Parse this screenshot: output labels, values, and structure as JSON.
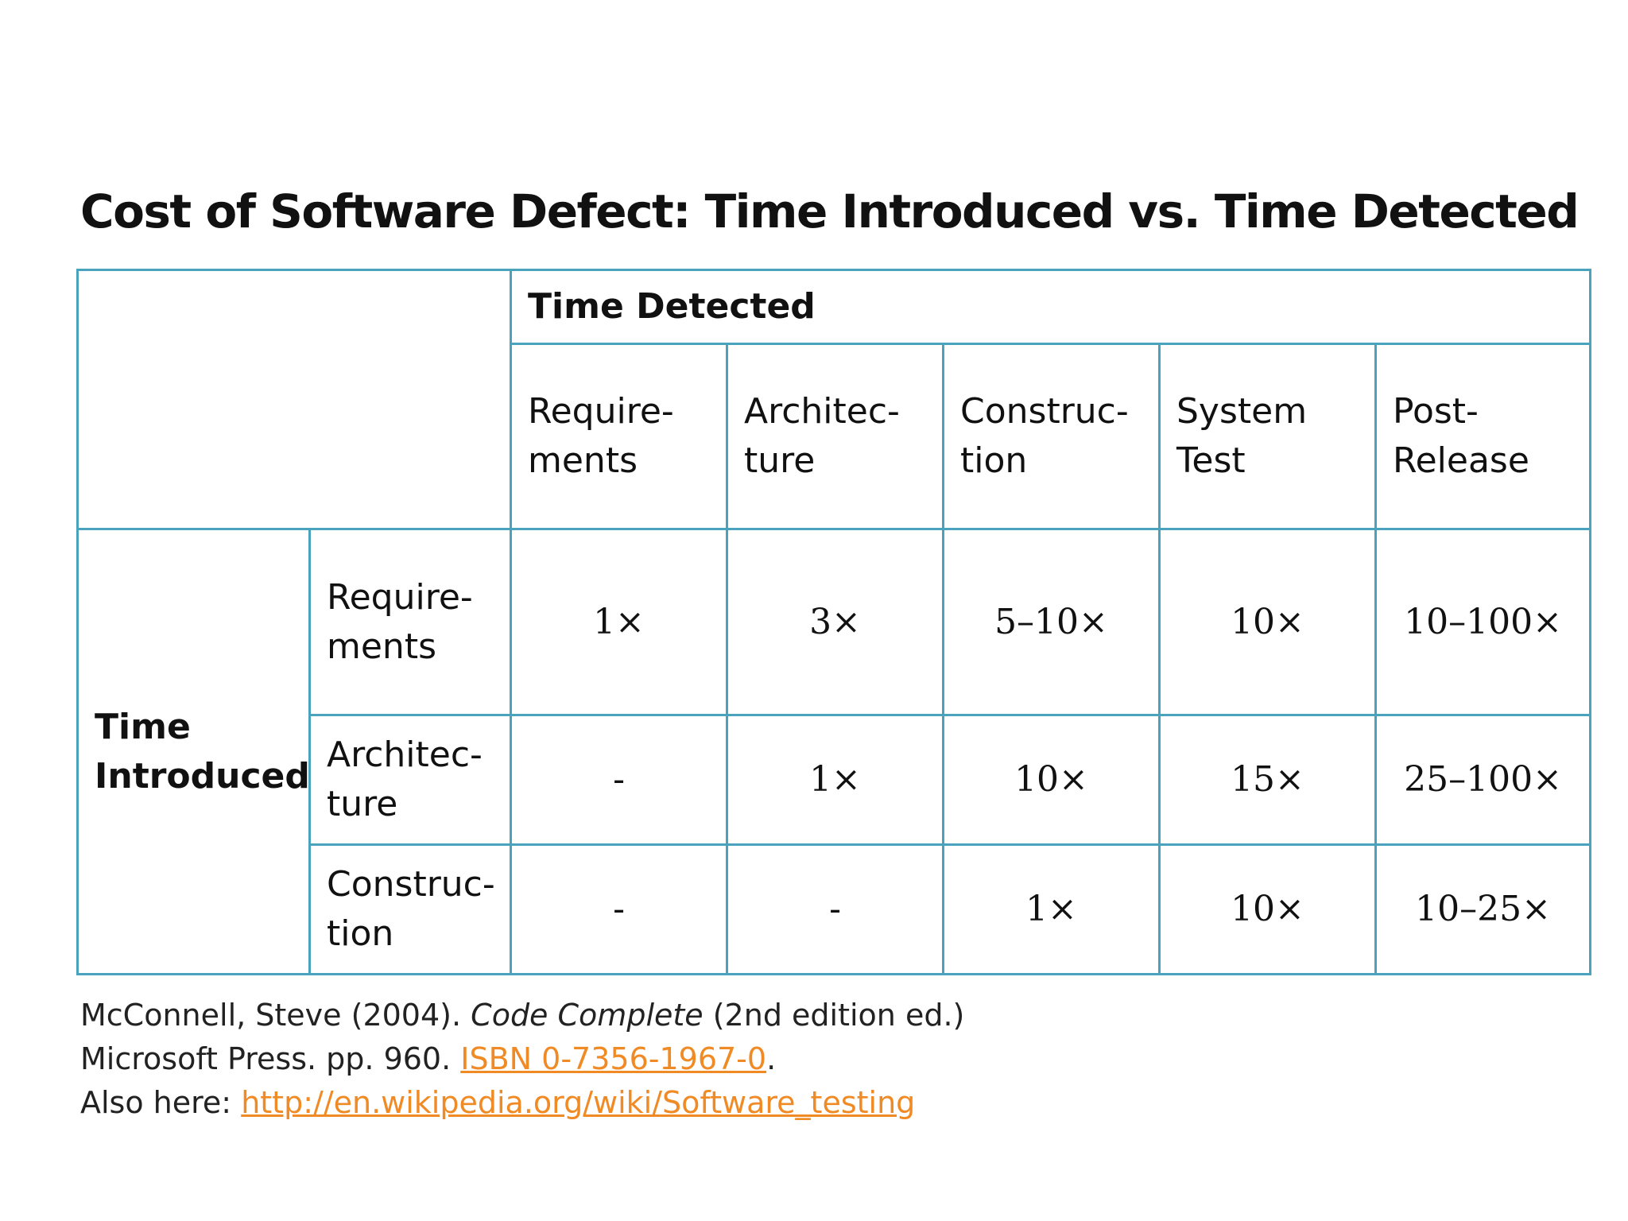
{
  "title": "Cost of Software Defect: Time Introduced vs. Time Detected",
  "table": {
    "detected_label": "Time Detected",
    "introduced_label": [
      "Time",
      "Introduced"
    ],
    "columns": [
      [
        "Require-",
        "ments"
      ],
      [
        "Architec-",
        "ture"
      ],
      [
        "Construc-",
        "tion"
      ],
      [
        "System",
        "Test"
      ],
      [
        "Post-",
        "Release"
      ]
    ],
    "rows": [
      {
        "label": [
          "Require-",
          "ments"
        ],
        "values": [
          "1×",
          "3×",
          "5–10×",
          "10×",
          "10–100×"
        ]
      },
      {
        "label": [
          "Architec-",
          "ture"
        ],
        "values": [
          "-",
          "1×",
          "10×",
          "15×",
          "25–100×"
        ]
      },
      {
        "label": [
          "Construc-",
          "tion"
        ],
        "values": [
          "-",
          "-",
          "1×",
          "10×",
          "10–25×"
        ]
      }
    ]
  },
  "citation": {
    "line1_prefix": "McConnell, Steve (2004). ",
    "book_title": "Code Complete",
    "line1_suffix": " (2nd edition ed.)",
    "line2_prefix": "Microsoft Press. pp. 960. ",
    "isbn_link": "ISBN 0-7356-1967-0",
    "line2_suffix": ".",
    "line3_prefix": "Also here: ",
    "url_link": "http://en.wikipedia.org/wiki/Software_testing"
  },
  "colors": {
    "table_border": "#4aa3bd",
    "link": "#f08a24"
  }
}
